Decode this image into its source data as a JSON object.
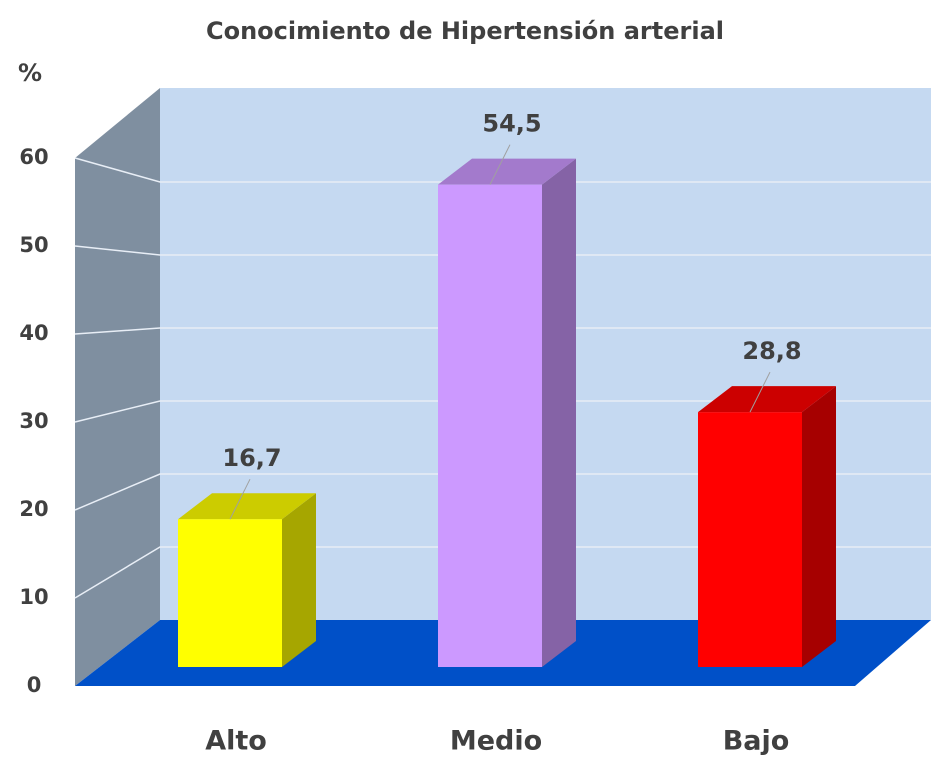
{
  "chart_data": {
    "type": "bar",
    "title": "Conocimiento de Hipertensión arterial",
    "y_label": "%",
    "categories": [
      "Alto",
      "Medio",
      "Bajo"
    ],
    "values": [
      16.7,
      54.5,
      28.8
    ],
    "value_labels": [
      "16,7",
      "54,5",
      "28,8"
    ],
    "colors": [
      "#ffff00",
      "#cc99ff",
      "#ff0000"
    ],
    "ylim": [
      0,
      60
    ],
    "yticks": [
      0,
      10,
      20,
      30,
      40,
      50,
      60
    ],
    "grid": true
  }
}
